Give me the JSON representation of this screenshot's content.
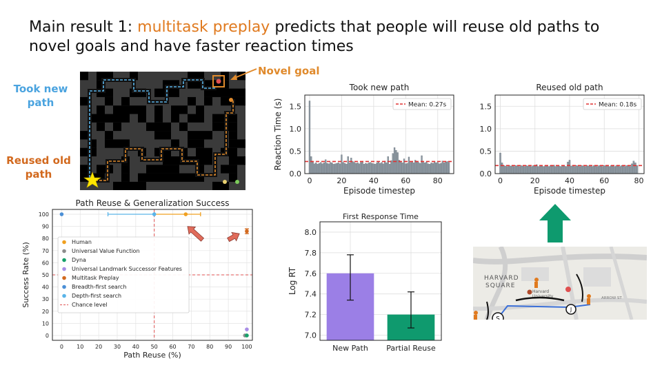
{
  "slide": {
    "title_pre": "Main result 1: ",
    "title_highlight": "multitask preplay",
    "title_post": " predicts that people will reuse old paths to novel goals and have faster reaction times",
    "label_new_line1": "Took new",
    "label_new_line2": "path",
    "label_old_line1": "Reused old",
    "label_old_line2": "path",
    "label_novel": "Novel goal",
    "colors": {
      "highlight": "#e07a1f",
      "new_path": "#4aa3df",
      "old_path": "#d2691e",
      "arrow_green": "#0e9a6e"
    }
  },
  "map": {
    "text_square_1": "HARVARD",
    "text_square_2": "SQUARE",
    "text_univ_1": "Harvard",
    "text_univ_2": "University",
    "text_street": "ARROW ST",
    "marker_s": "S",
    "marker_j": "J"
  },
  "chart_data": [
    {
      "id": "rt_new",
      "type": "bar",
      "title": "Took new path",
      "xlabel": "Episode timestep",
      "ylabel": "Reaction Time (s)",
      "ylim": [
        0,
        1.75
      ],
      "xlim": [
        -3,
        90
      ],
      "yticks": [
        0.0,
        0.5,
        1.0,
        1.5
      ],
      "ytick_labels": [
        "0.0",
        "0.5",
        "1.0",
        "1.5"
      ],
      "xticks": [
        0,
        20,
        40,
        60,
        80
      ],
      "xtick_labels": [
        "0",
        "20",
        "40",
        "60",
        "80"
      ],
      "mean": 0.27,
      "legend": "Mean: 0.27s",
      "legend_position": "upper right",
      "grid": true,
      "values": [
        1.62,
        0.38,
        0.26,
        0.22,
        0.24,
        0.21,
        0.23,
        0.25,
        0.22,
        0.24,
        0.31,
        0.23,
        0.22,
        0.25,
        0.24,
        0.21,
        0.22,
        0.23,
        0.24,
        0.22,
        0.42,
        0.25,
        0.23,
        0.21,
        0.38,
        0.24,
        0.35,
        0.27,
        0.25,
        0.23,
        0.24,
        0.22,
        0.25,
        0.26,
        0.21,
        0.23,
        0.22,
        0.24,
        0.25,
        0.23,
        0.22,
        0.21,
        0.24,
        0.26,
        0.23,
        0.25,
        0.22,
        0.28,
        0.24,
        0.38,
        0.21,
        0.29,
        0.45,
        0.58,
        0.52,
        0.47,
        0.3,
        0.27,
        0.24,
        0.33,
        0.22,
        0.23,
        0.37,
        0.25,
        0.26,
        0.24,
        0.3,
        0.27,
        0.25,
        0.23,
        0.4,
        0.25,
        0.24,
        0.26,
        0.22,
        0.21,
        0.24,
        0.23,
        0.27,
        0.24,
        0.25,
        0.22,
        0.23,
        0.28,
        0.24,
        0.26,
        0.27,
        0.25
      ]
    },
    {
      "id": "rt_old",
      "type": "bar",
      "title": "Reused old path",
      "xlabel": "Episode timestep",
      "ylabel": "",
      "ylim": [
        0,
        1.75
      ],
      "xlim": [
        -3,
        83
      ],
      "yticks": [
        0.0,
        0.5,
        1.0,
        1.5
      ],
      "ytick_labels": [
        "0.0",
        "0.5",
        "1.0",
        "1.5"
      ],
      "xticks": [
        0,
        20,
        40,
        60,
        80
      ],
      "xtick_labels": [
        "0",
        "20",
        "40",
        "60",
        "80"
      ],
      "mean": 0.18,
      "legend": "Mean: 0.18s",
      "legend_position": "upper right",
      "grid": true,
      "values": [
        0.46,
        0.24,
        0.18,
        0.17,
        0.16,
        0.18,
        0.17,
        0.19,
        0.16,
        0.18,
        0.17,
        0.16,
        0.18,
        0.17,
        0.16,
        0.18,
        0.17,
        0.19,
        0.16,
        0.18,
        0.17,
        0.2,
        0.16,
        0.18,
        0.17,
        0.16,
        0.18,
        0.17,
        0.16,
        0.18,
        0.17,
        0.19,
        0.16,
        0.18,
        0.17,
        0.16,
        0.18,
        0.17,
        0.16,
        0.26,
        0.3,
        0.17,
        0.19,
        0.16,
        0.18,
        0.17,
        0.16,
        0.18,
        0.17,
        0.16,
        0.18,
        0.17,
        0.19,
        0.16,
        0.18,
        0.17,
        0.16,
        0.18,
        0.17,
        0.16,
        0.18,
        0.17,
        0.19,
        0.16,
        0.18,
        0.17,
        0.16,
        0.18,
        0.17,
        0.16,
        0.18,
        0.17,
        0.16,
        0.18,
        0.17,
        0.16,
        0.22,
        0.28,
        0.24,
        0.18
      ]
    },
    {
      "id": "first_response",
      "type": "bar",
      "title": "First Response Time",
      "ylabel": "Log RT",
      "xlabel": "",
      "ylim": [
        6.95,
        8.1
      ],
      "yticks": [
        7.0,
        7.2,
        7.4,
        7.6,
        7.8,
        8.0
      ],
      "ytick_labels": [
        "7.0",
        "7.2",
        "7.4",
        "7.6",
        "7.8",
        "8.0"
      ],
      "categories": [
        "New Path",
        "Partial Reuse"
      ],
      "values": [
        7.6,
        7.2
      ],
      "err_low": [
        7.34,
        7.07
      ],
      "err_high": [
        7.78,
        7.42
      ],
      "colors": [
        "#9b7fe6",
        "#0f9a6e"
      ],
      "grid": true
    },
    {
      "id": "path_reuse",
      "type": "scatter",
      "title": "Path Reuse & Generalization Success",
      "xlabel": "Path Reuse (%)",
      "ylabel": "Success Rate (%)",
      "xlim": [
        -5,
        103
      ],
      "ylim": [
        -4,
        104
      ],
      "xticks": [
        0,
        10,
        20,
        30,
        40,
        50,
        60,
        70,
        80,
        90,
        100
      ],
      "xtick_labels": [
        "0",
        "10",
        "20",
        "30",
        "40",
        "50",
        "60",
        "70",
        "80",
        "90",
        "100"
      ],
      "yticks": [
        0,
        10,
        20,
        30,
        40,
        50,
        60,
        70,
        80,
        90,
        100
      ],
      "ytick_labels": [
        "0",
        "10",
        "20",
        "30",
        "40",
        "50",
        "60",
        "70",
        "80",
        "90",
        "100"
      ],
      "grid": true,
      "chance_x": 50,
      "chance_y": 50,
      "legend_position": "center",
      "series": [
        {
          "name": "Human",
          "color": "#f0a020",
          "points": [
            {
              "x": 67,
              "y": 100,
              "xerr": [
                50,
                75
              ]
            }
          ]
        },
        {
          "name": "Universal Value Function",
          "color": "#8c8c8c",
          "points": [
            {
              "x": 99,
              "y": 0
            }
          ]
        },
        {
          "name": "Dyna",
          "color": "#16a06a",
          "points": [
            {
              "x": 100,
              "y": 0
            }
          ]
        },
        {
          "name": "Universal Landmark Successor Features",
          "color": "#a98ee6",
          "points": [
            {
              "x": 100,
              "y": 5
            }
          ]
        },
        {
          "name": "Multitask Preplay",
          "color": "#d2691e",
          "points": [
            {
              "x": 100,
              "y": 86,
              "yerr": [
                84,
                88
              ]
            }
          ]
        },
        {
          "name": "Breadth-first search",
          "color": "#4b8fd6",
          "points": [
            {
              "x": 0,
              "y": 100
            }
          ]
        },
        {
          "name": "Depth-first search",
          "color": "#5ab4e8",
          "points": [
            {
              "x": 50,
              "y": 100,
              "xerr": [
                25,
                50
              ]
            }
          ]
        },
        {
          "name": "Chance level",
          "color": "#e05050",
          "points": []
        }
      ]
    }
  ]
}
